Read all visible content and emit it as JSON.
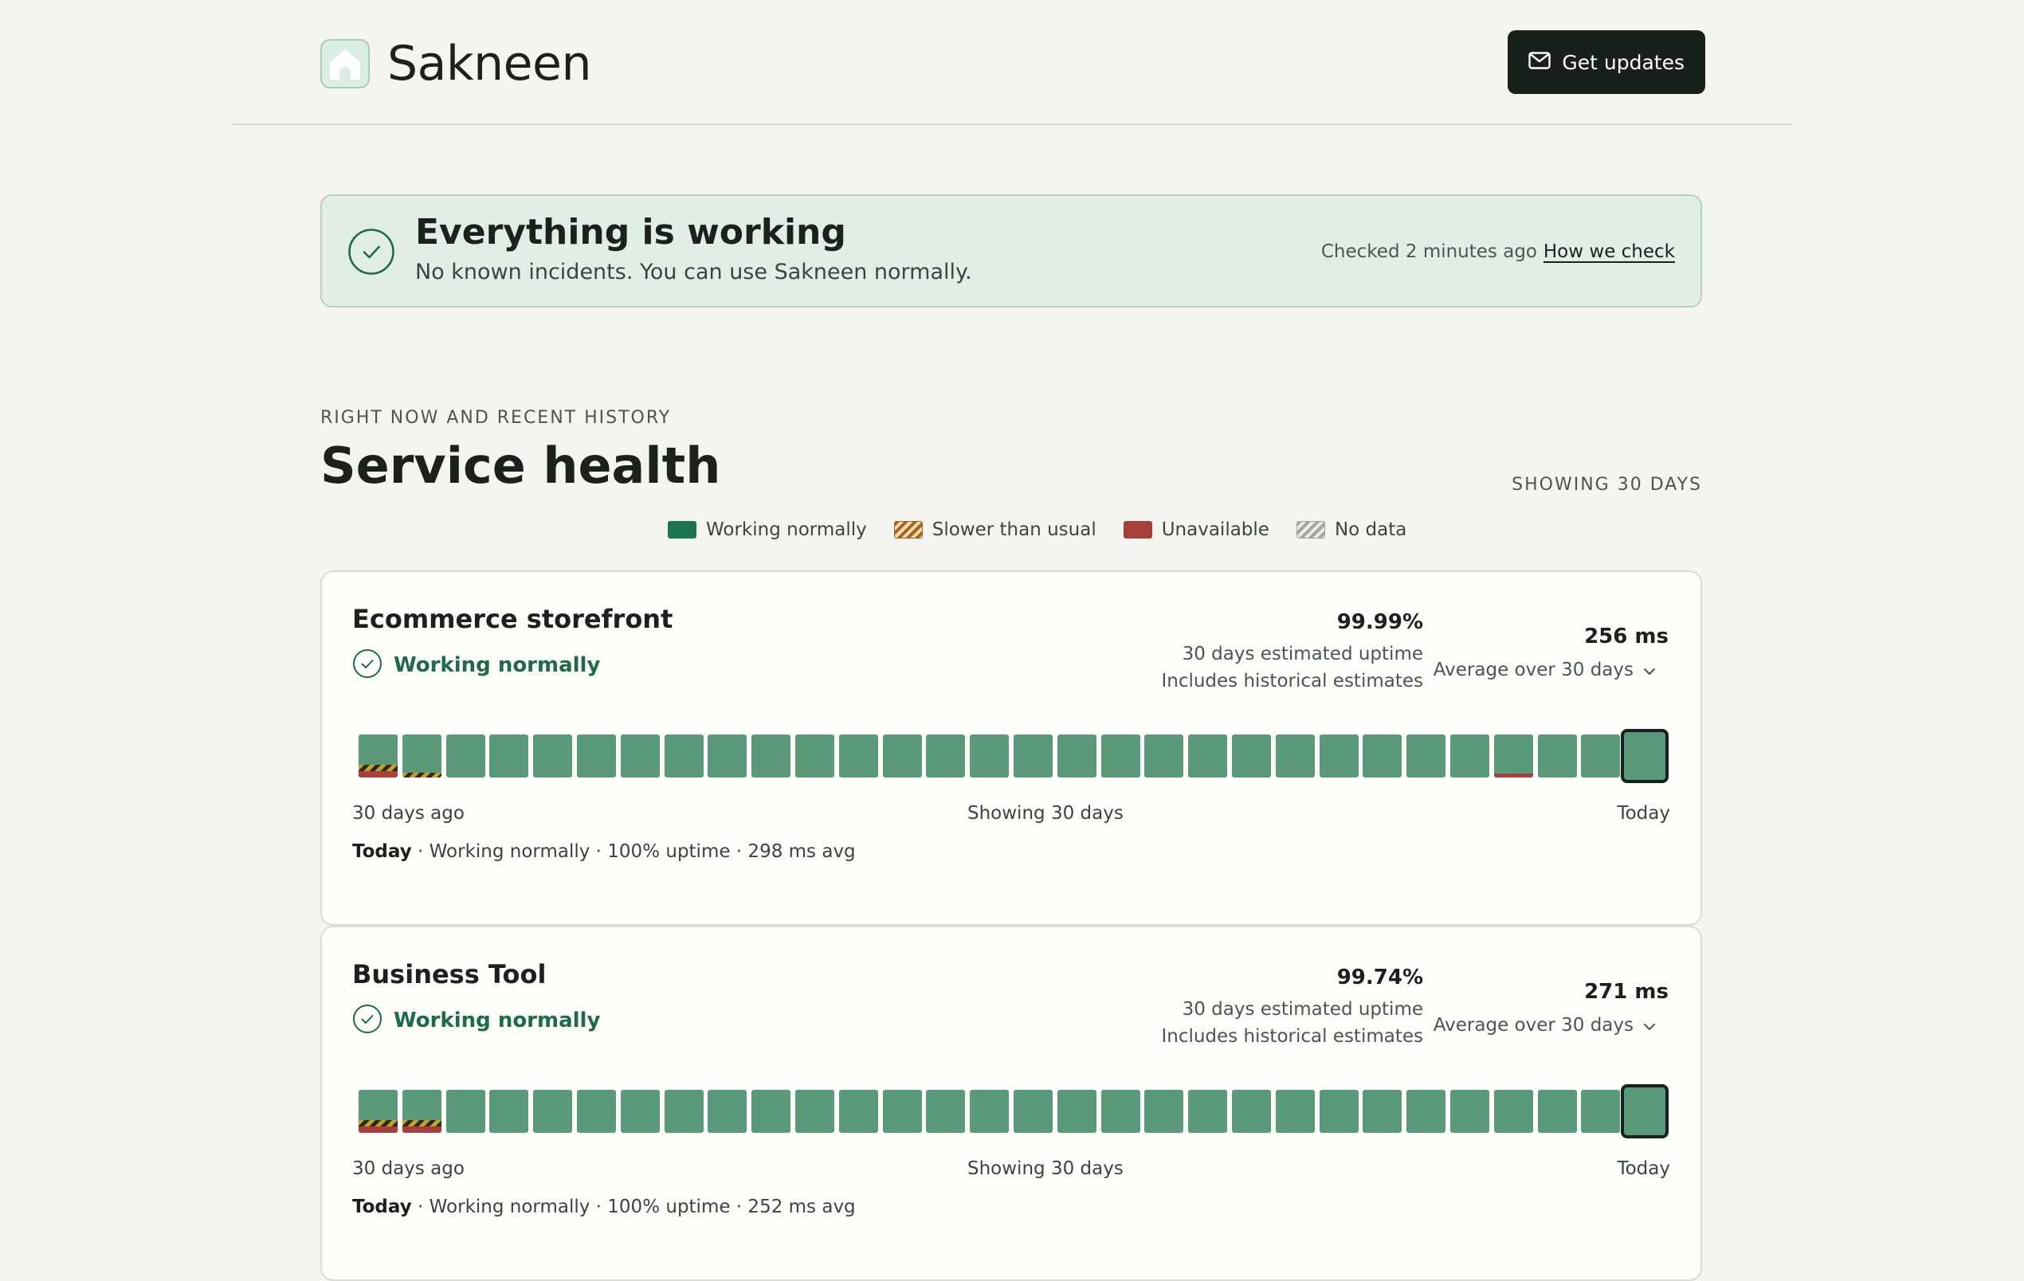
{
  "header": {
    "brand_name": "Sakneen",
    "updates_button": "Get updates"
  },
  "banner": {
    "title": "Everything is working",
    "subtitle": "No known incidents. You can use Sakneen normally.",
    "checked": "Checked 2 minutes ago",
    "link": "How we check"
  },
  "section": {
    "eyebrow": "RIGHT NOW AND RECENT HISTORY",
    "title": "Service health",
    "showing": "SHOWING 30 DAYS"
  },
  "legend": [
    {
      "label": "Working normally",
      "kind": "green"
    },
    {
      "label": "Slower than usual",
      "kind": "slow"
    },
    {
      "label": "Unavailable",
      "kind": "red"
    },
    {
      "label": "No data",
      "kind": "nodata"
    }
  ],
  "colors": {
    "ok": "#5a9a7a",
    "ok_dark": "#1e7350",
    "slow": "#c8a027",
    "down": "#a6403c"
  },
  "services": [
    {
      "name": "Ecommerce storefront",
      "status": "Working normally",
      "uptime": "99.99%",
      "uptime_label": "30 days estimated uptime",
      "uptime_note": "Includes historical estimates",
      "latency": "256 ms",
      "latency_label": "Average over 30 days",
      "axis_left": "30 days ago",
      "axis_mid": "Showing 30 days",
      "axis_right": "Today",
      "summary_day": "Today",
      "summary_rest": " · Working normally · 100% uptime · 298 ms avg",
      "days": [
        "slow-down",
        "slow",
        "ok",
        "ok",
        "ok",
        "ok",
        "ok",
        "ok",
        "ok",
        "ok",
        "ok",
        "ok",
        "ok",
        "ok",
        "ok",
        "ok",
        "ok",
        "ok",
        "ok",
        "ok",
        "ok",
        "ok",
        "ok",
        "ok",
        "ok",
        "ok",
        "down-thin",
        "ok",
        "ok",
        "ok"
      ]
    },
    {
      "name": "Business Tool",
      "status": "Working normally",
      "uptime": "99.74%",
      "uptime_label": "30 days estimated uptime",
      "uptime_note": "Includes historical estimates",
      "latency": "271 ms",
      "latency_label": "Average over 30 days",
      "axis_left": "30 days ago",
      "axis_mid": "Showing 30 days",
      "axis_right": "Today",
      "summary_day": "Today",
      "summary_rest": " · Working normally · 100% uptime · 252 ms avg",
      "days": [
        "slow-down",
        "slow-down",
        "ok",
        "ok",
        "ok",
        "ok",
        "ok",
        "ok",
        "ok",
        "ok",
        "ok",
        "ok",
        "ok",
        "ok",
        "ok",
        "ok",
        "ok",
        "ok",
        "ok",
        "ok",
        "ok",
        "ok",
        "ok",
        "ok",
        "ok",
        "ok",
        "ok",
        "ok",
        "ok",
        "ok"
      ]
    }
  ]
}
